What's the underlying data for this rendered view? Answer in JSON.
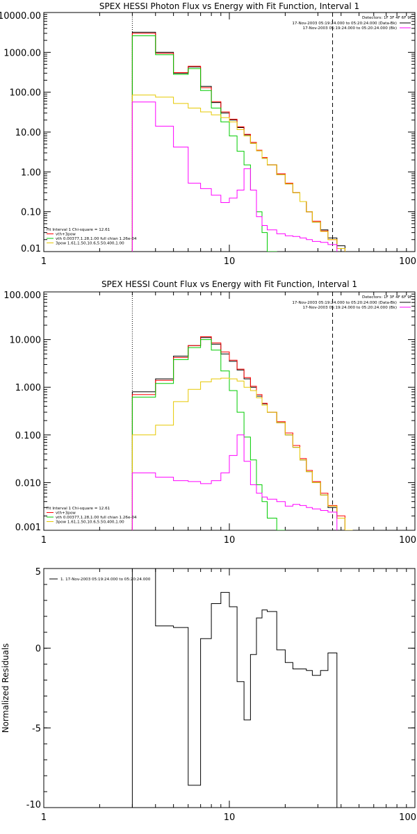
{
  "chart_data": [
    {
      "type": "line",
      "step": true,
      "title": "SPEX HESSI Photon Flux vs Energy with Fit Function, Interval 1",
      "xscale": "log",
      "yscale": "log",
      "xlim": [
        1,
        100
      ],
      "ylim": [
        0.01,
        10000
      ],
      "x_ticks": [
        1,
        10,
        100
      ],
      "x_tick_labels": [
        "1",
        "10",
        "100"
      ],
      "y_ticks": [
        0.01,
        0.1,
        1,
        10,
        100,
        1000,
        10000
      ],
      "y_tick_labels": [
        "0.01",
        "0.10",
        "1.00",
        "10.00",
        "100.00",
        "1000.00",
        "10000.00"
      ],
      "vlines": [
        {
          "x": 3,
          "style": "dotted"
        },
        {
          "x": 36,
          "style": "dashed"
        }
      ],
      "legend_top": {
        "header": "Detectors: 1F 3F 4F 6F 9F",
        "entries": [
          {
            "label": "17-Nov-2003 05:19:24.000 to 05:20:24.000 (Data-Bk)",
            "color": "#000000"
          },
          {
            "label": "17-Nov-2003 05:19:24.000 to 05:20:24.000 (Bk)",
            "color": "#ff00ff"
          }
        ]
      },
      "legend_bottom": {
        "header": "Fit Interval 1    Chi-square = 12.61",
        "entries": [
          {
            "label": "vth+3pow",
            "color": "#ff0000"
          },
          {
            "label": "vth 0.00377,1.28,1.00  full chian 1.26e-04",
            "color": "#00cc00"
          },
          {
            "label": "3pow 1.61,1.50,10.6,5.50,400,1.00",
            "color": "#e6c800"
          }
        ]
      },
      "edges": [
        3,
        4,
        5,
        6,
        7,
        8,
        9,
        10,
        11,
        12,
        13,
        14,
        15,
        16,
        18,
        20,
        22,
        24,
        26,
        28,
        31,
        34,
        38,
        42
      ],
      "series": [
        {
          "color": "#000000",
          "values": [
            3200,
            1000,
            300,
            430,
            140,
            55,
            30,
            20,
            13,
            8.5,
            5.2,
            3.4,
            2.2,
            1.5,
            0.85,
            0.5,
            0.3,
            0.18,
            0.1,
            0.055,
            0.035,
            0.022,
            0.014
          ]
        },
        {
          "color": "#ff0000",
          "values": [
            3000,
            950,
            310,
            450,
            130,
            58,
            32,
            21,
            13.5,
            8.8,
            5.5,
            3.5,
            2.3,
            1.5,
            0.9,
            0.52,
            0.3,
            0.18,
            0.1,
            0.058,
            0.033,
            0.02,
            0.012
          ]
        },
        {
          "color": "#00cc00",
          "values": [
            2600,
            870,
            280,
            390,
            110,
            40,
            18,
            8,
            3.3,
            1.5,
            0.35,
            0.1,
            0.03,
            0.009
          ]
        },
        {
          "color": "#e6c800",
          "values": [
            85,
            75,
            52,
            40,
            32,
            27,
            23,
            18,
            11.5,
            8,
            5.2,
            3.4,
            2.2,
            1.5,
            0.85,
            0.5,
            0.3,
            0.18,
            0.1,
            0.055,
            0.032,
            0.02,
            0.012
          ]
        },
        {
          "color": "#ff00ff",
          "values": [
            57,
            14,
            4.2,
            0.52,
            0.38,
            0.26,
            0.17,
            0.22,
            0.35,
            1.2,
            0.35,
            0.075,
            0.045,
            0.035,
            0.028,
            0.025,
            0.024,
            0.022,
            0.02,
            0.018,
            0.017,
            0.015
          ]
        }
      ]
    },
    {
      "type": "line",
      "step": true,
      "title": "SPEX HESSI Count Flux vs Energy with Fit Function, Interval 1",
      "xscale": "log",
      "yscale": "log",
      "xlim": [
        1,
        100
      ],
      "ylim": [
        0.001,
        100
      ],
      "x_ticks": [
        1,
        10,
        100
      ],
      "x_tick_labels": [
        "1",
        "10",
        "100"
      ],
      "y_ticks": [
        0.001,
        0.01,
        0.1,
        1,
        10,
        100
      ],
      "y_tick_labels": [
        "0.001",
        "0.010",
        "0.100",
        "1.000",
        "10.000",
        "100.000"
      ],
      "vlines": [
        {
          "x": 3,
          "style": "dotted"
        },
        {
          "x": 36,
          "style": "dashed"
        }
      ],
      "legend_top": {
        "header": "Detectors: 1F 3F 4F 6F 9F",
        "entries": [
          {
            "label": "17-Nov-2003 05:19:24.000 to 05:20:24.000 (Data-Bk)",
            "color": "#000000"
          },
          {
            "label": "17-Nov-2003 05:19:24.000 to 05:20:24.000 (Bk)",
            "color": "#ff00ff"
          }
        ]
      },
      "legend_bottom": {
        "header": "Fit Interval 1    Chi-square = 12.61",
        "entries": [
          {
            "label": "vth+3pow",
            "color": "#ff0000"
          },
          {
            "label": "vth 0.00377,1.28,1.00  full chian 1.26e-04",
            "color": "#00cc00"
          },
          {
            "label": "3pow 1.61,1.50,10.6,5.50,400,1.00",
            "color": "#e6c800"
          }
        ]
      },
      "edges": [
        3,
        4,
        5,
        6,
        7,
        8,
        9,
        10,
        11,
        12,
        13,
        14,
        15,
        16,
        18,
        20,
        22,
        24,
        26,
        28,
        31,
        34,
        38,
        42,
        46
      ],
      "series": [
        {
          "color": "#000000",
          "values": [
            0.8,
            1.5,
            4.5,
            7.5,
            11,
            8,
            5,
            3.5,
            2.3,
            1.5,
            1.0,
            0.65,
            0.45,
            0.3,
            0.18,
            0.1,
            0.055,
            0.03,
            0.017,
            0.01,
            0.0055,
            0.003,
            0.0018
          ]
        },
        {
          "color": "#ff0000",
          "values": [
            0.7,
            1.4,
            4.2,
            7.5,
            11.5,
            8.5,
            5.5,
            3.7,
            2.4,
            1.6,
            1.05,
            0.7,
            0.46,
            0.3,
            0.19,
            0.11,
            0.06,
            0.032,
            0.018,
            0.0105,
            0.006,
            0.0033,
            0.002
          ]
        },
        {
          "color": "#00cc00",
          "values": [
            0.62,
            1.2,
            3.8,
            6.8,
            10,
            6,
            2.2,
            0.85,
            0.3,
            0.09,
            0.03,
            0.009,
            0.004,
            0.0018,
            0.0009
          ]
        },
        {
          "color": "#e6c800",
          "values": [
            0.1,
            0.16,
            0.5,
            0.9,
            1.3,
            1.5,
            1.55,
            1.5,
            1.35,
            1.0,
            0.85,
            0.6,
            0.42,
            0.3,
            0.18,
            0.1,
            0.055,
            0.03,
            0.017,
            0.01,
            0.0055,
            0.0032,
            0.0018,
            0.001
          ]
        },
        {
          "color": "#ff00ff",
          "values": [
            0.016,
            0.013,
            0.011,
            0.0105,
            0.0095,
            0.011,
            0.016,
            0.037,
            0.1,
            0.028,
            0.009,
            0.006,
            0.005,
            0.0045,
            0.004,
            0.0032,
            0.0035,
            0.0033,
            0.003,
            0.0028,
            0.0026,
            0.0024
          ]
        }
      ]
    },
    {
      "type": "line",
      "step": true,
      "title": "",
      "ylabel": "Normalized Residuals",
      "xscale": "log",
      "yscale": "linear",
      "xlim": [
        1,
        100
      ],
      "ylim": [
        -10,
        5
      ],
      "x_ticks": [
        1,
        10,
        100
      ],
      "x_tick_labels": [
        "1",
        "10",
        "100"
      ],
      "y_ticks": [
        -10,
        -5,
        0,
        5
      ],
      "y_tick_labels": [
        "-10",
        "-5",
        "0",
        "5"
      ],
      "legend_top": {
        "header": "",
        "entries": [
          {
            "label": "1. 17-Nov-2003 05:19:24.000 to 05:20:24.000",
            "color": "#000000"
          }
        ]
      },
      "edges": [
        3,
        4,
        5,
        6,
        7,
        8,
        9,
        10,
        11,
        12,
        13,
        14,
        15,
        16,
        18,
        20,
        22,
        24,
        26,
        28,
        31,
        34,
        38
      ],
      "series": [
        {
          "color": "#000000",
          "values": [
            5.0,
            1.4,
            1.3,
            -8.6,
            0.6,
            2.8,
            3.5,
            2.6,
            -2.1,
            -4.5,
            -0.4,
            1.9,
            2.4,
            2.3,
            -0.1,
            -0.9,
            -1.3,
            -1.3,
            -1.4,
            -1.7,
            -1.4,
            -0.3
          ]
        }
      ]
    }
  ]
}
